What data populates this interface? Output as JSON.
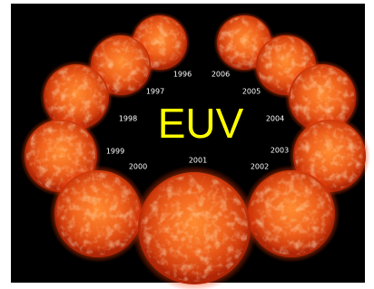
{
  "title": "EUV",
  "years": [
    "1996",
    "1997",
    "1998",
    "1999",
    "2000",
    "2001",
    "2002",
    "2003",
    "2004",
    "2005",
    "2006"
  ]
}
